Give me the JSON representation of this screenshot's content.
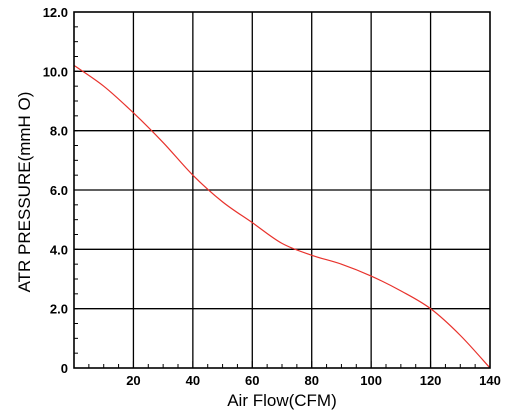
{
  "chart_data": {
    "type": "line",
    "xlabel": "Air Flow(CFM)",
    "ylabel": "ATR PRESSURE(mmH O)",
    "xlim": [
      0,
      140
    ],
    "ylim": [
      0,
      12
    ],
    "x_ticks": [
      20,
      40,
      60,
      80,
      100,
      120,
      140
    ],
    "y_ticks": [
      0,
      2.0,
      4.0,
      6.0,
      8.0,
      10.0,
      12.0
    ],
    "y_tick_labels": [
      "0",
      "2.0",
      "4.0",
      "6.0",
      "8.0",
      "10.0",
      "12.0"
    ],
    "grid": true,
    "line_color": "#e8322c",
    "series": [
      {
        "x": [
          0,
          10,
          20,
          30,
          40,
          50,
          60,
          70,
          80,
          90,
          100,
          110,
          120,
          130,
          140
        ],
        "values": [
          10.2,
          9.5,
          8.6,
          7.6,
          6.5,
          5.6,
          4.9,
          4.2,
          3.8,
          3.5,
          3.1,
          2.6,
          2.0,
          1.1,
          0.0
        ]
      }
    ]
  }
}
